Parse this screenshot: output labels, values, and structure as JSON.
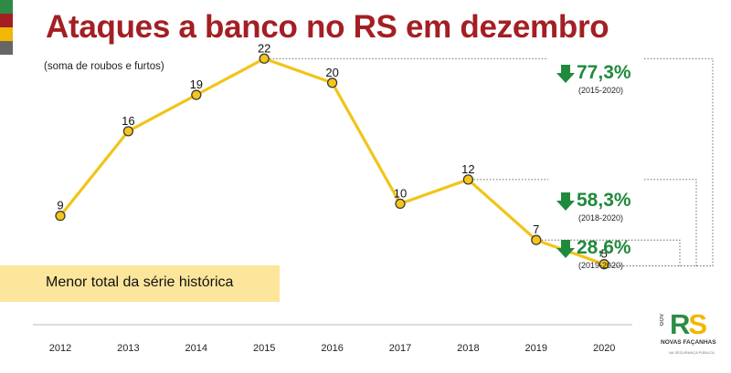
{
  "header": {
    "title": "Ataques a banco no RS em dezembro",
    "subtitle": "(soma de roubos e furtos)"
  },
  "flag_colors": [
    "#2e8b46",
    "#a31f24",
    "#f2b705",
    "#666666"
  ],
  "chart_data": {
    "type": "line",
    "categories": [
      "2012",
      "2013",
      "2014",
      "2015",
      "2016",
      "2017",
      "2018",
      "2019",
      "2020"
    ],
    "values": [
      9,
      16,
      19,
      22,
      20,
      10,
      12,
      7,
      5
    ],
    "title": "Ataques a banco no RS em dezembro",
    "subtitle": "(soma de roubos e furtos)",
    "xlabel": "",
    "ylabel": "",
    "ylim": [
      0,
      25
    ],
    "grid": false,
    "line_color": "#f2c417",
    "marker_color": "#f5c518",
    "annotation": "Menor total da série histórica",
    "comparisons": [
      {
        "from": "2015",
        "to": "2020",
        "change": "77,3%",
        "range": "(2015-2020)"
      },
      {
        "from": "2018",
        "to": "2020",
        "change": "58,3%",
        "range": "(2018-2020)"
      },
      {
        "from": "2019",
        "to": "2020",
        "change": "28,6%",
        "range": "(2019-2020)"
      }
    ]
  },
  "stats": [
    {
      "pct": "77,3%",
      "range": "(2015-2020)"
    },
    {
      "pct": "58,3%",
      "range": "(2018-2020)"
    },
    {
      "pct": "28,6%",
      "range": "(2019-2020)"
    }
  ],
  "stat_color": "#1f8a3c",
  "logo": {
    "gov": "GOV",
    "r": "R",
    "s": "S",
    "slogan": "NOVAS FAÇANHAS",
    "slogan_sub": "NA SEGURANÇA PÚBLICA"
  }
}
